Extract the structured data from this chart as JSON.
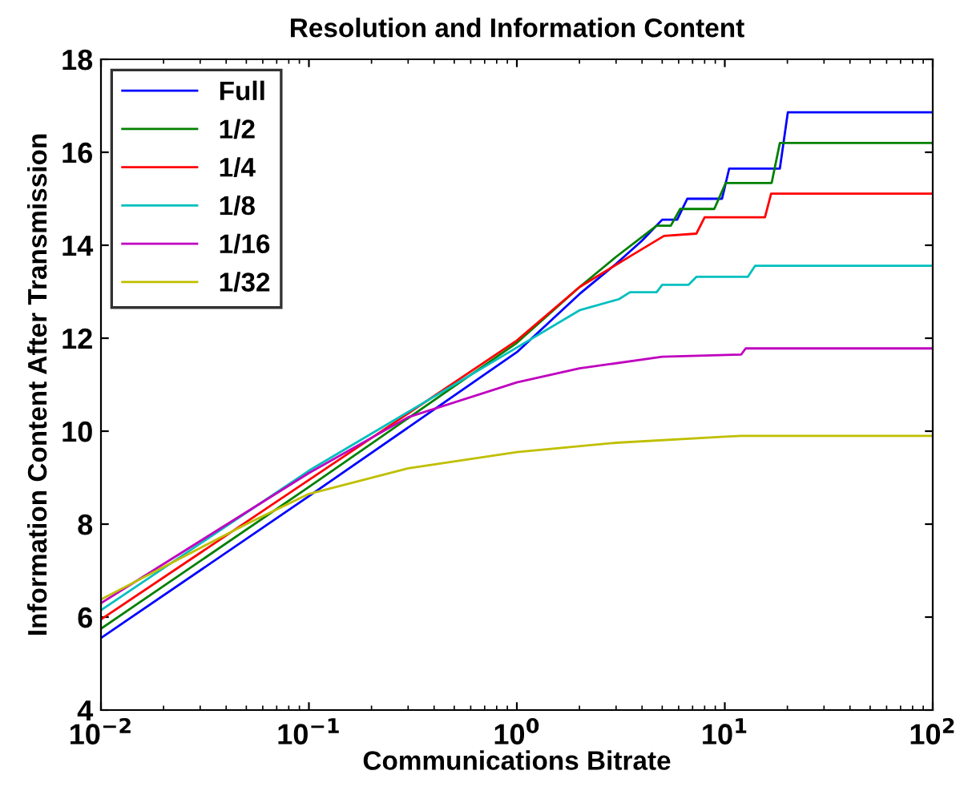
{
  "chart_data": {
    "type": "line",
    "title": "Resolution and Information Content",
    "xlabel": "Communications Bitrate",
    "ylabel": "Information Content After Transmission",
    "log": "x",
    "grid": false,
    "legend": "top left",
    "line_style": "solid",
    "marker": "none",
    "xlim": [
      0.01,
      100
    ],
    "xticks": [
      {
        "value": 0.01,
        "label": "10$^{−2}$"
      },
      {
        "value": 0.1,
        "label": "10$^{−1}$"
      },
      {
        "value": 1,
        "label": "10$^{0}$"
      },
      {
        "value": 10,
        "label": "10$^{1}$"
      },
      {
        "value": 100,
        "label": "10$^{2}$"
      }
    ],
    "ylim": [
      4,
      18
    ],
    "yticks": [
      4,
      6,
      8,
      10,
      12,
      14,
      16,
      18
    ],
    "series": [
      {
        "name": "Full",
        "color": "#0000ff",
        "x": [
          0.01,
          0.1,
          1,
          2,
          3,
          4,
          5,
          5.9,
          6.6,
          9.7,
          10.5,
          18.4,
          20.1,
          100
        ],
        "values": [
          5.55,
          8.6,
          11.7,
          12.95,
          13.6,
          14.1,
          14.55,
          14.55,
          15.0,
          15.0,
          15.65,
          15.65,
          16.86,
          16.86
        ]
      },
      {
        "name": "1/2",
        "color": "#008000",
        "x": [
          0.01,
          0.1,
          1,
          2,
          3,
          4.7,
          5.5,
          6.1,
          8.9,
          10.1,
          16.8,
          18.4,
          100
        ],
        "values": [
          5.75,
          8.8,
          11.9,
          13.1,
          13.75,
          14.42,
          14.42,
          14.78,
          14.78,
          15.34,
          15.34,
          16.2,
          16.2
        ]
      },
      {
        "name": "1/4",
        "color": "#ff0000",
        "x": [
          0.01,
          0.1,
          1,
          2,
          3.5,
          5.1,
          7.3,
          8.0,
          15.6,
          16.7,
          100
        ],
        "values": [
          5.95,
          8.95,
          11.95,
          13.1,
          13.76,
          14.2,
          14.25,
          14.6,
          14.6,
          15.11,
          15.11
        ]
      },
      {
        "name": "1/8",
        "color": "#00bfbf",
        "x": [
          0.01,
          0.1,
          0.5,
          1,
          2,
          3.1,
          3.5,
          4.7,
          5.0,
          6.7,
          7.3,
          12.9,
          14,
          100
        ],
        "values": [
          6.15,
          9.15,
          11.0,
          11.8,
          12.6,
          12.84,
          12.99,
          12.99,
          13.15,
          13.15,
          13.32,
          13.32,
          13.56,
          13.56
        ]
      },
      {
        "name": "1/16",
        "color": "#bf00bf",
        "x": [
          0.01,
          0.1,
          0.3,
          1,
          2,
          5,
          12,
          12.6,
          100
        ],
        "values": [
          6.3,
          9.1,
          10.3,
          11.05,
          11.35,
          11.6,
          11.65,
          11.78,
          11.78
        ]
      },
      {
        "name": "1/32",
        "color": "#bfbf00",
        "x": [
          0.01,
          0.05,
          0.1,
          0.3,
          1,
          3,
          10,
          12,
          100
        ],
        "values": [
          6.38,
          8.0,
          8.65,
          9.2,
          9.55,
          9.75,
          9.88,
          9.9,
          9.9
        ]
      }
    ]
  }
}
